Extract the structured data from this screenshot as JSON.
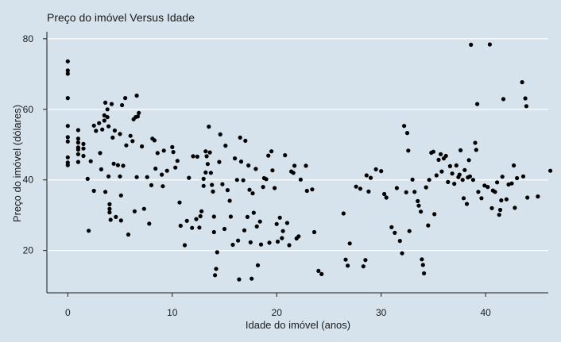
{
  "chart_data": {
    "type": "scatter",
    "title": "Preço do imóvel Versus Idade",
    "xlabel": "Idade do imóvel (anos)",
    "ylabel": "Preço do imóvel (dólares)",
    "xlim": [
      -2,
      46
    ],
    "ylim": [
      8,
      82
    ],
    "xticks": [
      0,
      10,
      20,
      30,
      40
    ],
    "yticks": [
      20,
      40,
      60,
      80
    ],
    "grid": "horizontal",
    "colors": {
      "background": "#d6e3ec",
      "grid": "#ffffff",
      "point": "#000000",
      "axis": "#1a1a1a"
    },
    "points": [
      [
        0.0,
        73.6
      ],
      [
        0.0,
        71.0
      ],
      [
        0.0,
        70.1
      ],
      [
        0.0,
        63.2
      ],
      [
        0.0,
        55.3
      ],
      [
        0.0,
        52.1
      ],
      [
        0.0,
        50.9
      ],
      [
        0.0,
        46.4
      ],
      [
        0.0,
        44.9
      ],
      [
        0.0,
        44.2
      ],
      [
        1.0,
        54.1
      ],
      [
        1.0,
        51.7
      ],
      [
        1.0,
        50.6
      ],
      [
        1.0,
        49.2
      ],
      [
        1.0,
        48.6
      ],
      [
        1.0,
        47.3
      ],
      [
        1.0,
        45.1
      ],
      [
        1.5,
        50.2
      ],
      [
        1.5,
        48.9
      ],
      [
        1.5,
        46.8
      ],
      [
        1.9,
        40.3
      ],
      [
        2.0,
        25.6
      ],
      [
        2.2,
        45.3
      ],
      [
        2.5,
        55.4
      ],
      [
        2.5,
        36.9
      ],
      [
        2.7,
        53.9
      ],
      [
        3.0,
        56.1
      ],
      [
        3.1,
        47.6
      ],
      [
        3.2,
        43.0
      ],
      [
        3.3,
        54.3
      ],
      [
        3.5,
        56.8
      ],
      [
        3.5,
        58.3
      ],
      [
        3.6,
        36.6
      ],
      [
        3.6,
        61.9
      ],
      [
        3.8,
        60.0
      ],
      [
        3.8,
        57.8
      ],
      [
        3.9,
        41.0
      ],
      [
        3.9,
        55.2
      ],
      [
        4.0,
        33.1
      ],
      [
        4.0,
        31.8
      ],
      [
        4.0,
        30.8
      ],
      [
        4.1,
        28.7
      ],
      [
        4.2,
        61.5
      ],
      [
        4.3,
        52.0
      ],
      [
        4.4,
        44.6
      ],
      [
        4.5,
        54.0
      ],
      [
        4.6,
        29.5
      ],
      [
        4.8,
        44.2
      ],
      [
        5.0,
        53.0
      ],
      [
        5.0,
        41.0
      ],
      [
        5.1,
        35.6
      ],
      [
        5.1,
        28.5
      ],
      [
        5.2,
        61.2
      ],
      [
        5.3,
        44.0
      ],
      [
        5.5,
        63.2
      ],
      [
        5.6,
        49.8
      ],
      [
        5.8,
        24.5
      ],
      [
        6.0,
        52.5
      ],
      [
        6.2,
        51.0
      ],
      [
        6.3,
        57.2
      ],
      [
        6.4,
        31.1
      ],
      [
        6.5,
        57.8
      ],
      [
        6.6,
        40.8
      ],
      [
        6.6,
        63.9
      ],
      [
        6.7,
        58.0
      ],
      [
        6.8,
        59.0
      ],
      [
        7.1,
        49.5
      ],
      [
        7.3,
        31.8
      ],
      [
        7.6,
        40.8
      ],
      [
        7.8,
        27.6
      ],
      [
        8.0,
        38.5
      ],
      [
        8.1,
        51.7
      ],
      [
        8.3,
        51.2
      ],
      [
        8.4,
        43.2
      ],
      [
        8.6,
        47.6
      ],
      [
        9.0,
        41.5
      ],
      [
        9.1,
        38.2
      ],
      [
        9.2,
        48.3
      ],
      [
        9.5,
        42.6
      ],
      [
        10.0,
        49.3
      ],
      [
        10.1,
        47.9
      ],
      [
        10.3,
        43.5
      ],
      [
        10.5,
        45.4
      ],
      [
        10.7,
        33.6
      ],
      [
        10.8,
        27.0
      ],
      [
        11.2,
        21.5
      ],
      [
        11.4,
        28.4
      ],
      [
        11.6,
        40.6
      ],
      [
        11.9,
        26.4
      ],
      [
        12.0,
        46.7
      ],
      [
        12.3,
        28.9
      ],
      [
        12.4,
        46.6
      ],
      [
        12.6,
        26.5
      ],
      [
        12.7,
        29.7
      ],
      [
        12.8,
        31.1
      ],
      [
        13.0,
        38.3
      ],
      [
        13.0,
        40.3
      ],
      [
        13.2,
        42.1
      ],
      [
        13.2,
        48.1
      ],
      [
        13.3,
        46.7
      ],
      [
        13.4,
        44.5
      ],
      [
        13.5,
        55.1
      ],
      [
        13.6,
        47.8
      ],
      [
        13.7,
        42.0
      ],
      [
        13.8,
        38.6
      ],
      [
        13.9,
        36.7
      ],
      [
        14.0,
        29.6
      ],
      [
        14.0,
        25.2
      ],
      [
        14.1,
        13.0
      ],
      [
        14.2,
        14.8
      ],
      [
        14.3,
        19.5
      ],
      [
        14.5,
        45.1
      ],
      [
        14.6,
        52.9
      ],
      [
        14.8,
        38.8
      ],
      [
        15.0,
        26.1
      ],
      [
        15.1,
        49.7
      ],
      [
        15.3,
        37.1
      ],
      [
        15.5,
        34.1
      ],
      [
        15.6,
        29.6
      ],
      [
        15.8,
        21.6
      ],
      [
        16.0,
        46.1
      ],
      [
        16.2,
        40.0
      ],
      [
        16.3,
        22.8
      ],
      [
        16.4,
        11.8
      ],
      [
        16.5,
        52.0
      ],
      [
        16.6,
        45.2
      ],
      [
        16.8,
        39.9
      ],
      [
        16.9,
        25.7
      ],
      [
        17.0,
        51.1
      ],
      [
        17.2,
        29.5
      ],
      [
        17.3,
        44.1
      ],
      [
        17.4,
        37.2
      ],
      [
        17.5,
        22.3
      ],
      [
        17.6,
        12.0
      ],
      [
        17.7,
        36.2
      ],
      [
        17.8,
        30.7
      ],
      [
        18.0,
        43.1
      ],
      [
        18.1,
        26.8
      ],
      [
        18.2,
        15.8
      ],
      [
        18.4,
        28.2
      ],
      [
        18.5,
        21.7
      ],
      [
        18.7,
        38.0
      ],
      [
        18.8,
        40.5
      ],
      [
        19.0,
        40.2
      ],
      [
        19.2,
        46.9
      ],
      [
        19.3,
        22.2
      ],
      [
        19.5,
        48.1
      ],
      [
        19.6,
        42.7
      ],
      [
        19.8,
        37.7
      ],
      [
        20.0,
        27.5
      ],
      [
        20.1,
        22.5
      ],
      [
        20.3,
        29.3
      ],
      [
        20.5,
        23.5
      ],
      [
        20.6,
        25.5
      ],
      [
        20.8,
        47.0
      ],
      [
        21.0,
        27.8
      ],
      [
        21.2,
        21.5
      ],
      [
        21.4,
        42.4
      ],
      [
        21.6,
        42.0
      ],
      [
        21.7,
        44.0
      ],
      [
        21.9,
        23.4
      ],
      [
        22.1,
        24.0
      ],
      [
        22.3,
        40.1
      ],
      [
        22.8,
        44.0
      ],
      [
        22.9,
        36.9
      ],
      [
        23.4,
        37.3
      ],
      [
        23.6,
        25.2
      ],
      [
        24.0,
        14.2
      ],
      [
        24.3,
        13.3
      ],
      [
        26.4,
        30.5
      ],
      [
        26.6,
        17.4
      ],
      [
        26.8,
        15.7
      ],
      [
        27.0,
        22.0
      ],
      [
        27.6,
        38.1
      ],
      [
        28.0,
        37.5
      ],
      [
        28.3,
        15.5
      ],
      [
        28.5,
        17.3
      ],
      [
        28.6,
        41.3
      ],
      [
        28.8,
        36.7
      ],
      [
        29.0,
        40.6
      ],
      [
        29.5,
        43.0
      ],
      [
        30.0,
        42.5
      ],
      [
        30.3,
        36.0
      ],
      [
        30.5,
        35.0
      ],
      [
        31.0,
        26.6
      ],
      [
        31.3,
        25.0
      ],
      [
        31.5,
        37.7
      ],
      [
        31.8,
        22.7
      ],
      [
        32.0,
        19.2
      ],
      [
        32.2,
        55.3
      ],
      [
        32.4,
        36.5
      ],
      [
        32.5,
        53.3
      ],
      [
        32.6,
        48.3
      ],
      [
        32.7,
        25.5
      ],
      [
        33.0,
        40.1
      ],
      [
        33.2,
        36.6
      ],
      [
        33.5,
        34.0
      ],
      [
        33.6,
        32.7
      ],
      [
        33.8,
        31.0
      ],
      [
        33.9,
        17.5
      ],
      [
        34.0,
        15.9
      ],
      [
        34.1,
        13.5
      ],
      [
        34.3,
        37.9
      ],
      [
        34.5,
        27.1
      ],
      [
        34.6,
        40.0
      ],
      [
        34.8,
        47.7
      ],
      [
        35.0,
        48.0
      ],
      [
        35.1,
        30.3
      ],
      [
        35.3,
        41.3
      ],
      [
        35.5,
        45.7
      ],
      [
        35.7,
        47.3
      ],
      [
        35.8,
        42.4
      ],
      [
        36.0,
        46.1
      ],
      [
        36.2,
        46.8
      ],
      [
        36.4,
        39.4
      ],
      [
        36.6,
        43.9
      ],
      [
        36.8,
        41.8
      ],
      [
        37.0,
        38.9
      ],
      [
        37.2,
        44.1
      ],
      [
        37.4,
        40.8
      ],
      [
        37.5,
        41.5
      ],
      [
        37.6,
        48.4
      ],
      [
        37.8,
        40.0
      ],
      [
        37.9,
        34.8
      ],
      [
        38.0,
        42.8
      ],
      [
        38.2,
        33.2
      ],
      [
        38.3,
        40.7
      ],
      [
        38.4,
        45.6
      ],
      [
        38.5,
        41.0
      ],
      [
        38.6,
        78.3
      ],
      [
        38.8,
        40.0
      ],
      [
        39.0,
        50.5
      ],
      [
        39.1,
        48.5
      ],
      [
        39.2,
        61.5
      ],
      [
        39.3,
        36.6
      ],
      [
        39.6,
        34.8
      ],
      [
        39.9,
        38.4
      ],
      [
        40.2,
        38.0
      ],
      [
        40.4,
        78.4
      ],
      [
        40.6,
        32.0
      ],
      [
        40.7,
        37.0
      ],
      [
        40.9,
        36.6
      ],
      [
        41.1,
        39.3
      ],
      [
        41.3,
        30.1
      ],
      [
        41.4,
        31.5
      ],
      [
        41.5,
        34.2
      ],
      [
        41.6,
        40.9
      ],
      [
        41.7,
        62.9
      ],
      [
        42.0,
        34.5
      ],
      [
        42.2,
        38.7
      ],
      [
        42.5,
        39.0
      ],
      [
        42.7,
        44.1
      ],
      [
        42.8,
        32.1
      ],
      [
        43.0,
        40.5
      ],
      [
        43.5,
        67.7
      ],
      [
        43.6,
        41.0
      ],
      [
        43.8,
        63.1
      ],
      [
        43.9,
        60.9
      ],
      [
        44.0,
        35.0
      ],
      [
        45.0,
        35.3
      ],
      [
        46.2,
        42.6
      ]
    ]
  }
}
